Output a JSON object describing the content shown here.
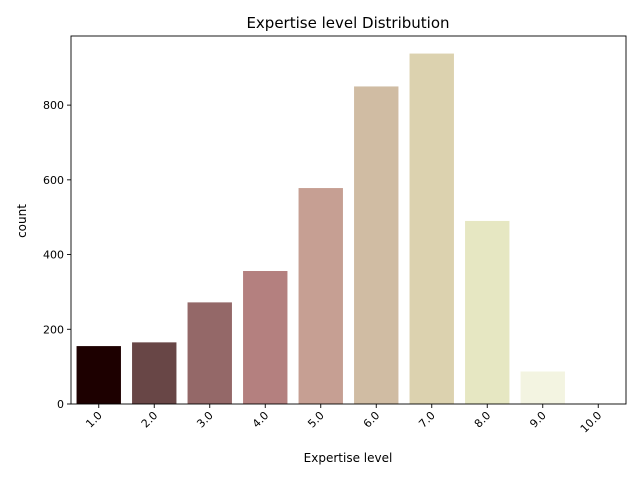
{
  "chart_data": {
    "type": "bar",
    "title": "Expertise level Distribution",
    "xlabel": "Expertise level",
    "ylabel": "count",
    "categories": [
      "1.0",
      "2.0",
      "3.0",
      "4.0",
      "5.0",
      "6.0",
      "7.0",
      "8.0",
      "9.0",
      "10.0"
    ],
    "values": [
      155,
      165,
      272,
      356,
      578,
      850,
      938,
      490,
      87,
      2
    ],
    "ylim": [
      0,
      985
    ],
    "yticks": [
      "0",
      "200",
      "400",
      "600",
      "800"
    ],
    "ytick_values": [
      0,
      200,
      400,
      600,
      800
    ],
    "grid": false,
    "legend": "none",
    "colors": [
      "#1d0000",
      "#684646",
      "#946868",
      "#b4807f",
      "#c69f93",
      "#d0bca3",
      "#dcd2af",
      "#e6e7c2",
      "#f3f4e1",
      "#fdfdf5"
    ]
  }
}
